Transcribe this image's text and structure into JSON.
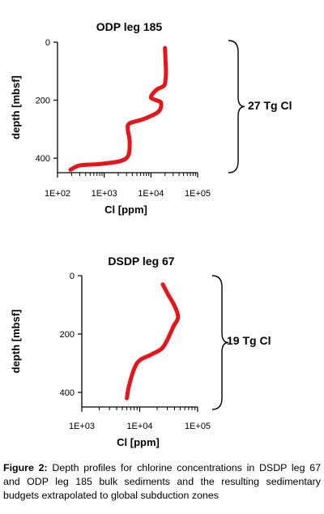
{
  "chart_data": [
    {
      "type": "line",
      "title": "ODP leg 185",
      "xlabel": "Cl [ppm]",
      "ylabel": "depth [mbsf]",
      "x_scale": "log",
      "xlim": [
        100,
        100000
      ],
      "ylim": [
        0,
        450
      ],
      "y_inverted": true,
      "x_tick_labels": [
        "1E+02",
        "1E+03",
        "1E+04",
        "1E+05"
      ],
      "y_tick_labels": [
        "0",
        "200",
        "400"
      ],
      "line_color": "#e8141b",
      "series": [
        {
          "x": [
            20000,
            20500,
            21000,
            20500,
            19000,
            13000,
            10000,
            13000,
            16500,
            14500,
            7000,
            3500,
            3200,
            3500,
            3300,
            2200,
            800,
            300,
            190
          ],
          "y": [
            20,
            60,
            100,
            130,
            150,
            165,
            190,
            200,
            210,
            240,
            265,
            280,
            300,
            340,
            390,
            410,
            420,
            425,
            440
          ]
        }
      ],
      "bracket_label": "27 Tg Cl"
    },
    {
      "type": "line",
      "title": "DSDP leg 67",
      "xlabel": "Cl [ppm]",
      "ylabel": "depth [mbsf]",
      "x_scale": "log",
      "xlim": [
        1000,
        100000
      ],
      "ylim": [
        0,
        450
      ],
      "y_inverted": true,
      "x_tick_labels": [
        "1E+03",
        "1E+04",
        "1E+05"
      ],
      "y_tick_labels": [
        "0",
        "200",
        "400"
      ],
      "line_color": "#e8141b",
      "series": [
        {
          "x": [
            25000,
            31000,
            38000,
            45000,
            45000,
            38000,
            30000,
            24000,
            16000,
            10000,
            8000,
            6500,
            6000
          ],
          "y": [
            30,
            65,
            95,
            130,
            150,
            175,
            220,
            250,
            270,
            290,
            320,
            380,
            420
          ]
        }
      ],
      "bracket_label": "19 Tg Cl"
    }
  ],
  "caption": {
    "lead": "Figure 2:",
    "text": " Depth profiles for chlorine concentrations in DSDP leg 67 and ODP leg 185 bulk sediments and the resulting sedimentary budgets extrapolated to global subduction zones"
  }
}
